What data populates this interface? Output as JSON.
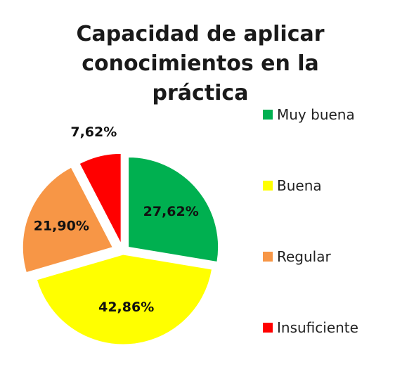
{
  "chart_data": {
    "type": "pie",
    "title": [
      "Capacidad de aplicar",
      "conocimientos en la",
      "práctica"
    ],
    "categories": [
      "Muy buena",
      "Buena",
      "Regular",
      "Insuficiente"
    ],
    "values": [
      27.62,
      42.86,
      21.9,
      7.62
    ],
    "value_labels": [
      "27,62%",
      "42,86%",
      "21,90%",
      "7,62%"
    ],
    "colors": [
      "#00b050",
      "#ffff00",
      "#f79646",
      "#ff0000"
    ],
    "exploded": true,
    "legend_position": "right"
  }
}
